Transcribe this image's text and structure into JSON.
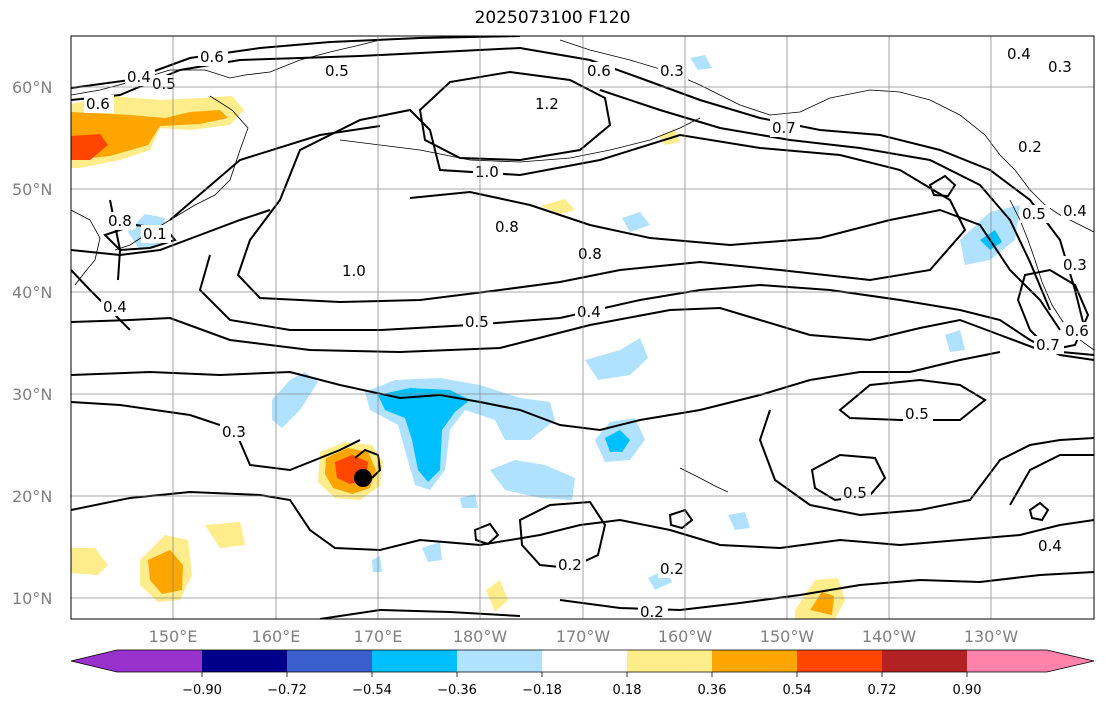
{
  "title": "2025073100 F120",
  "map": {
    "lat_labels": [
      "60°N",
      "50°N",
      "40°N",
      "30°N",
      "20°N",
      "10°N"
    ],
    "lon_labels": [
      "150°E",
      "160°E",
      "170°E",
      "180°W",
      "170°W",
      "160°W",
      "150°W",
      "140°W",
      "130°W"
    ],
    "contour_labels": [
      "0.6",
      "0.4",
      "0.5",
      "0.6",
      "0.5",
      "0.3",
      "0.6",
      "1.2",
      "0.7",
      "1.0",
      "0.8",
      "0.8",
      "1.0",
      "0.8",
      "0.1",
      "0.4",
      "0.5",
      "0.4",
      "0.3",
      "0.5",
      "0.5",
      "0.2",
      "0.2",
      "0.2",
      "0.4",
      "0.4",
      "0.3",
      "0.2",
      "0.5",
      "0.4",
      "0.3",
      "0.6",
      "0.7"
    ],
    "features": {
      "marker": "storm-center-dot"
    }
  },
  "colorbar": {
    "ticks": [
      "−0.90",
      "−0.72",
      "−0.54",
      "−0.36",
      "−0.18",
      "0.18",
      "0.36",
      "0.54",
      "0.72",
      "0.90"
    ],
    "colors": {
      "under": "#9932cc",
      "c1": "#00008b",
      "c2": "#3a5fcd",
      "c3": "#00bfff",
      "c4": "#b0e2ff",
      "c5": "#ffffff",
      "c6": "#ffec8b",
      "c7": "#ffa500",
      "c8": "#ff4500",
      "c9": "#b22222",
      "c10": "#ff82ab"
    }
  }
}
